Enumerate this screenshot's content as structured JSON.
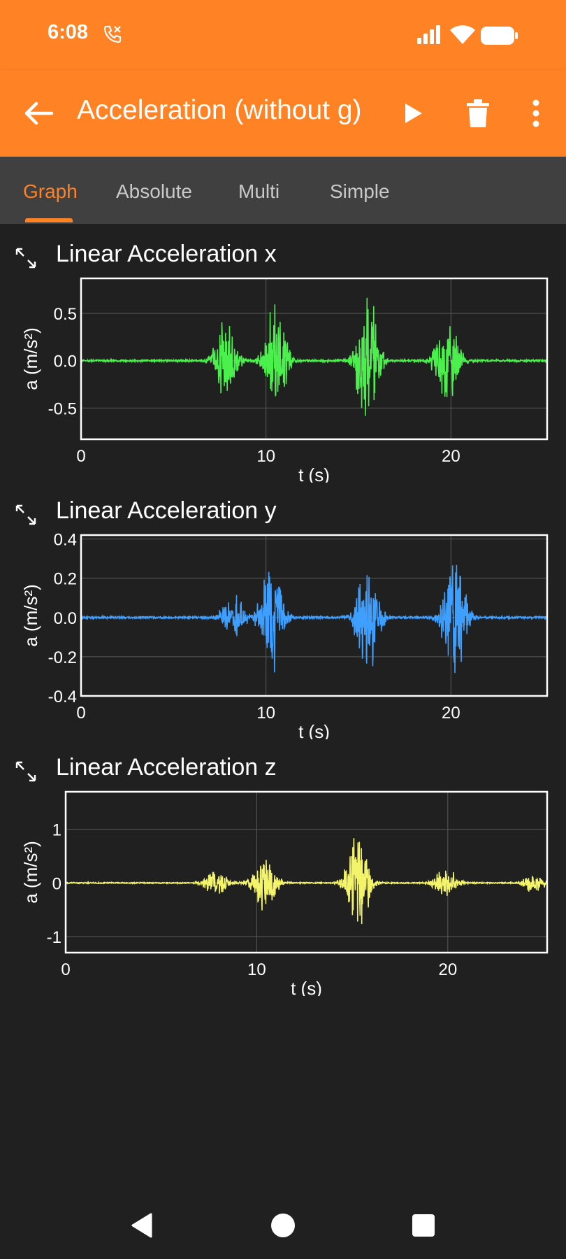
{
  "status_bar": {
    "time": "6:08",
    "icons": [
      "call-forward-icon",
      "signal-icon",
      "wifi-icon",
      "battery-icon"
    ]
  },
  "app_bar": {
    "title": "Acceleration (without g)",
    "icons": [
      "back-arrow-icon",
      "play-icon",
      "trash-icon",
      "more-vert-icon"
    ]
  },
  "tabs": [
    {
      "label": "Graph",
      "active": true
    },
    {
      "label": "Absolute",
      "active": false
    },
    {
      "label": "Multi",
      "active": false
    },
    {
      "label": "Simple",
      "active": false
    }
  ],
  "colors": {
    "accent": "#ff8224",
    "background": "#202020",
    "tab_bar": "#404040",
    "x_series": "#4cf04c",
    "y_series": "#3f9fff",
    "z_series": "#f4f46a"
  },
  "chart_data": [
    {
      "type": "line",
      "title": "Linear Acceleration x",
      "xlabel": "t (s)",
      "ylabel": "a (m/s²)",
      "xlim": [
        0,
        25.2
      ],
      "ylim": [
        -0.83,
        0.87
      ],
      "xticks": [
        0,
        10,
        20
      ],
      "xtick_labels": [
        "0",
        "10",
        "20"
      ],
      "yticks": [
        -0.5,
        0.0,
        0.5
      ],
      "ytick_labels": [
        "-0.5",
        "0.0",
        "0.5"
      ],
      "grid": true,
      "series": [
        {
          "color": "#4cf04c",
          "bursts": [
            [
              7.8,
              0.5
            ],
            [
              10.5,
              0.75
            ],
            [
              15.5,
              0.8
            ],
            [
              19.8,
              0.6
            ]
          ],
          "noise": 0.01,
          "duration": 25.2
        }
      ]
    },
    {
      "type": "line",
      "title": "Linear Acceleration y",
      "xlabel": "t (s)",
      "ylabel": "a (m/s²)",
      "xlim": [
        0,
        25.2
      ],
      "ylim": [
        -0.4,
        0.42
      ],
      "xticks": [
        0,
        10,
        20
      ],
      "xtick_labels": [
        "0",
        "10",
        "20"
      ],
      "yticks": [
        -0.4,
        -0.2,
        0.0,
        0.2,
        0.4
      ],
      "ytick_labels": [
        "-0.4",
        "-0.2",
        "0.0",
        "0.2",
        "0.4"
      ],
      "grid": true,
      "series": [
        {
          "color": "#3f9fff",
          "bursts": [
            [
              8.2,
              0.15
            ],
            [
              10.3,
              0.33
            ],
            [
              15.5,
              0.37
            ],
            [
              20.2,
              0.38
            ]
          ],
          "noise": 0.005,
          "duration": 25.2
        }
      ]
    },
    {
      "type": "line",
      "title": "Linear Acceleration z",
      "xlabel": "t (s)",
      "ylabel": "a (m/s²)",
      "xlim": [
        0,
        25.2
      ],
      "ylim": [
        -1.3,
        1.7
      ],
      "xticks": [
        0,
        10,
        20
      ],
      "xtick_labels": [
        "0",
        "10",
        "20"
      ],
      "yticks": [
        -1,
        0,
        1
      ],
      "ytick_labels": [
        "-1",
        "0",
        "1"
      ],
      "grid": true,
      "series": [
        {
          "color": "#f4f46a",
          "bursts": [
            [
              7.9,
              0.3
            ],
            [
              10.4,
              0.6
            ],
            [
              15.3,
              1.08
            ],
            [
              19.9,
              0.35
            ],
            [
              24.5,
              0.2
            ]
          ],
          "noise": 0.01,
          "duration": 25.2
        }
      ]
    }
  ],
  "nav_bar": {
    "icons": [
      "nav-back-icon",
      "nav-home-icon",
      "nav-recents-icon"
    ]
  }
}
